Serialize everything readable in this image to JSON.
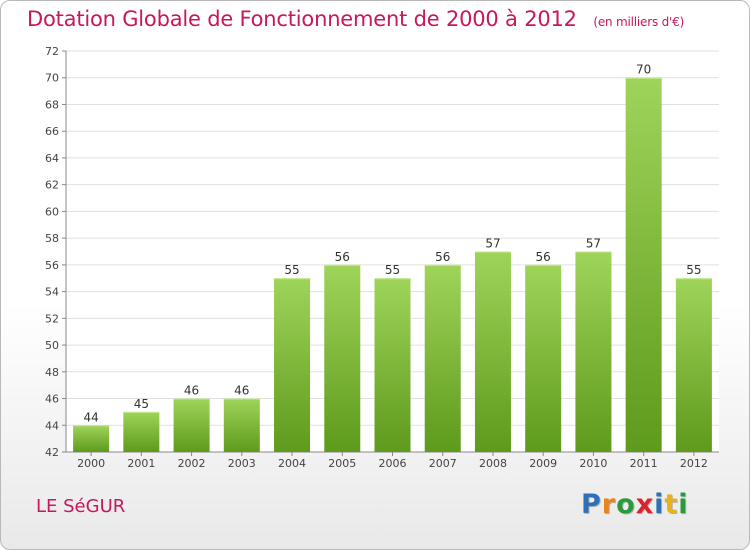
{
  "header": {
    "title": "Dotation Globale de Fonctionnement de 2000 à 2012",
    "unit_note": "(en milliers d'€)"
  },
  "footer": {
    "place_name": "LE SéGUR",
    "logo_letters": [
      {
        "ch": "P",
        "color": "#2f6fb5"
      },
      {
        "ch": "r",
        "color": "#e8841a"
      },
      {
        "ch": "o",
        "color": "#2a9a3c"
      },
      {
        "ch": "x",
        "color": "#d8242c"
      },
      {
        "ch": "i",
        "color": "#2f6fb5"
      },
      {
        "ch": "t",
        "color": "#e8b21a"
      },
      {
        "ch": "i",
        "color": "#2a9a3c"
      }
    ]
  },
  "colors": {
    "accent": "#c8175c",
    "bar_light": "#9fd45a",
    "bar_dark": "#5e9a1c",
    "grid": "#e0e0e0"
  },
  "chart_data": {
    "type": "bar",
    "title": "Dotation Globale de Fonctionnement de 2000 à 2012",
    "subtitle": "(en milliers d'€)",
    "xlabel": "",
    "ylabel": "",
    "categories": [
      "2000",
      "2001",
      "2002",
      "2003",
      "2004",
      "2005",
      "2006",
      "2007",
      "2008",
      "2009",
      "2010",
      "2011",
      "2012"
    ],
    "values": [
      44,
      45,
      46,
      46,
      55,
      56,
      55,
      56,
      57,
      56,
      57,
      70,
      55
    ],
    "data_labels": [
      "44",
      "45",
      "46",
      "46",
      "55",
      "56",
      "55",
      "56",
      "57",
      "56",
      "57",
      "70",
      "55"
    ],
    "ylim": [
      42,
      72
    ],
    "yticks": [
      42,
      44,
      46,
      48,
      50,
      52,
      54,
      56,
      58,
      60,
      62,
      64,
      66,
      68,
      70,
      72
    ],
    "grid": true,
    "legend": "none"
  }
}
